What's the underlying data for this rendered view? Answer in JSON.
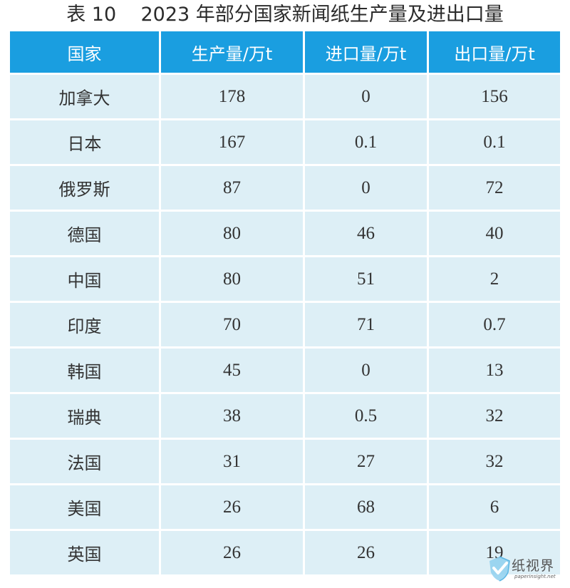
{
  "title": "表 10    2023 年部分国家新闻纸生产量及进出口量",
  "table": {
    "headers": [
      "国家",
      "生产量/万t",
      "进口量/万t",
      "出口量/万t"
    ],
    "rows": [
      [
        "加拿大",
        "178",
        "0",
        "156"
      ],
      [
        "日本",
        "167",
        "0.1",
        "0.1"
      ],
      [
        "俄罗斯",
        "87",
        "0",
        "72"
      ],
      [
        "德国",
        "80",
        "46",
        "40"
      ],
      [
        "中国",
        "80",
        "51",
        "2"
      ],
      [
        "印度",
        "70",
        "71",
        "0.7"
      ],
      [
        "韩国",
        "45",
        "0",
        "13"
      ],
      [
        "瑞典",
        "38",
        "0.5",
        "32"
      ],
      [
        "法国",
        "31",
        "27",
        "32"
      ],
      [
        "美国",
        "26",
        "68",
        "6"
      ],
      [
        "英国",
        "26",
        "26",
        "19"
      ]
    ]
  },
  "watermark": {
    "brand": "纸视界",
    "url": "paperinsight.net",
    "icon": "paperinsight-logo-icon"
  },
  "colors": {
    "header_bg": "#1a9ee0",
    "row_bg": "#ddeff6",
    "header_text": "#ffffff"
  }
}
